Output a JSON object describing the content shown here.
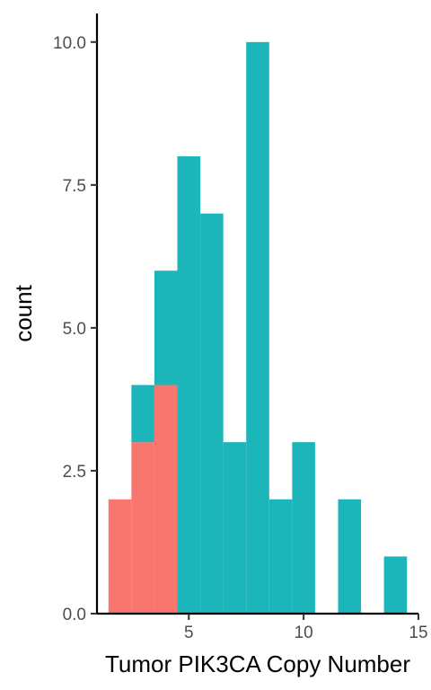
{
  "chart_data": {
    "type": "bar",
    "xlabel": "Tumor PIK3CA Copy Number",
    "ylabel": "count",
    "xlim": [
      1.0,
      15.0
    ],
    "ylim": [
      0,
      10.5
    ],
    "x_ticks": [
      5,
      10,
      15
    ],
    "x_tick_labels": [
      "5",
      "10",
      "15"
    ],
    "y_ticks": [
      0,
      2.5,
      5.0,
      7.5,
      10.0
    ],
    "y_tick_labels": [
      "0.0",
      "2.5",
      "5.0",
      "7.5",
      "10.0"
    ],
    "bin_width": 1,
    "grid": false,
    "legend": "none",
    "stacked": true,
    "series": [
      {
        "color": "#F8766D",
        "bins": [
          {
            "x": 2,
            "value": 2
          },
          {
            "x": 3,
            "value": 3
          },
          {
            "x": 4,
            "value": 4
          }
        ]
      },
      {
        "color": "#1CB5B9",
        "bins": [
          {
            "x": 3,
            "value": 1
          },
          {
            "x": 4,
            "value": 2
          },
          {
            "x": 5,
            "value": 8
          },
          {
            "x": 6,
            "value": 7
          },
          {
            "x": 7,
            "value": 3
          },
          {
            "x": 8,
            "value": 10
          },
          {
            "x": 9,
            "value": 2
          },
          {
            "x": 10,
            "value": 3
          },
          {
            "x": 12,
            "value": 2
          },
          {
            "x": 14,
            "value": 1
          }
        ]
      }
    ]
  }
}
